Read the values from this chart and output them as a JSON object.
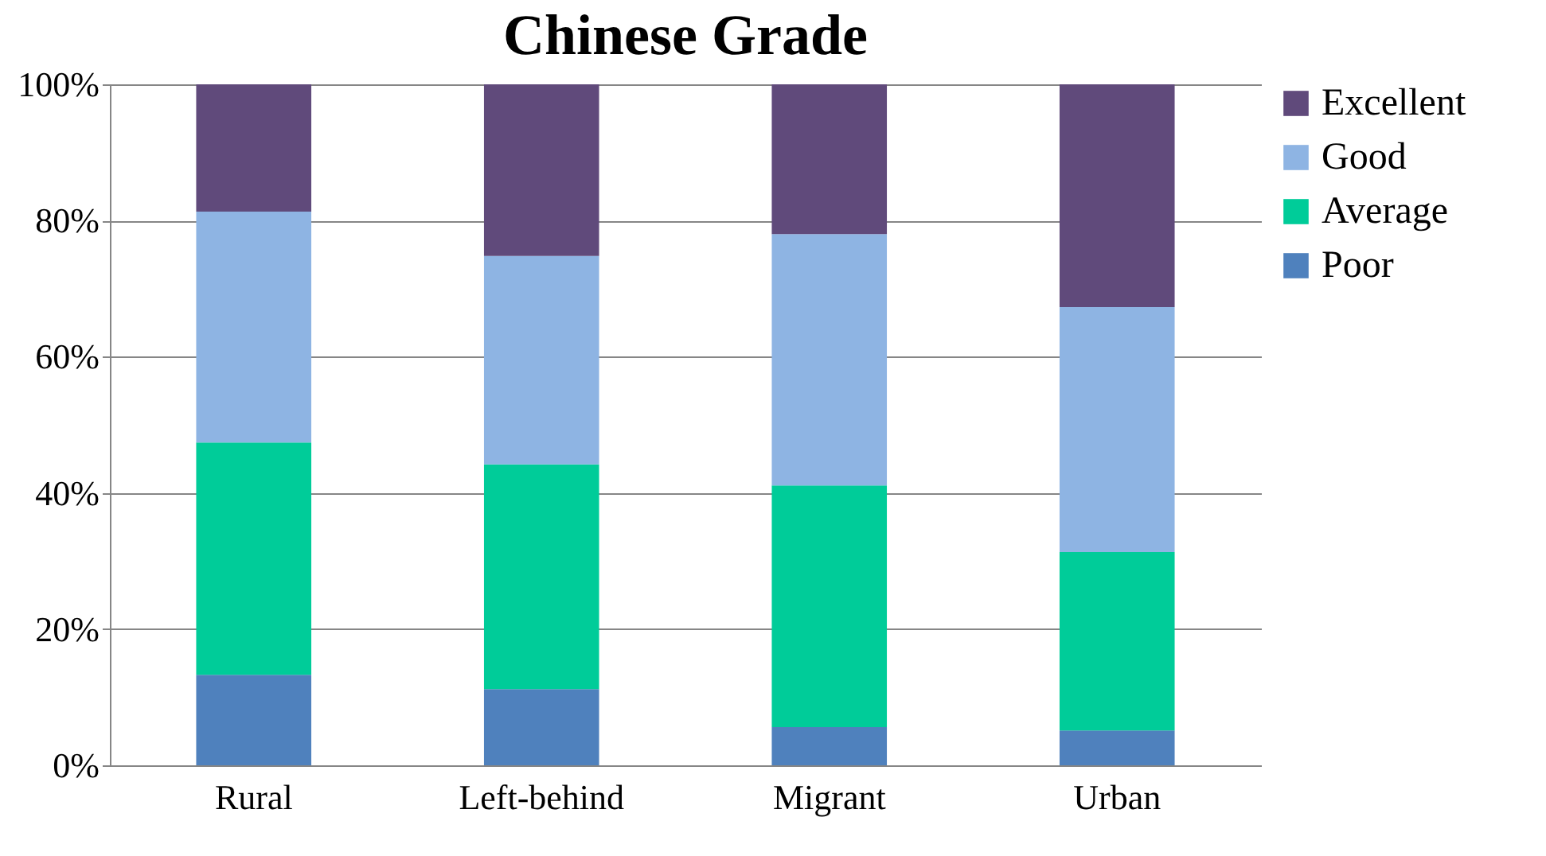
{
  "chart_data": {
    "type": "bar",
    "title": "Chinese Grade",
    "stacked": true,
    "categories": [
      "Rural",
      "Left-behind",
      "Migrant",
      "Urban"
    ],
    "series": [
      {
        "name": "Poor",
        "color": "#4f81bd",
        "values": [
          13.3,
          11.2,
          5.6,
          5.1
        ]
      },
      {
        "name": "Average",
        "color": "#00cc99",
        "values": [
          34.1,
          33.0,
          35.5,
          26.2
        ]
      },
      {
        "name": "Good",
        "color": "#8eb4e3",
        "values": [
          33.9,
          30.6,
          36.9,
          36.0
        ]
      },
      {
        "name": "Excellent",
        "color": "#604a7b",
        "values": [
          18.7,
          25.2,
          22.0,
          32.7
        ]
      }
    ],
    "ylim": [
      0,
      100
    ],
    "yticks": [
      {
        "value": 0,
        "label": "0%"
      },
      {
        "value": 20,
        "label": "20%"
      },
      {
        "value": 40,
        "label": "40%"
      },
      {
        "value": 60,
        "label": "60%"
      },
      {
        "value": 80,
        "label": "80%"
      },
      {
        "value": 100,
        "label": "100%"
      }
    ],
    "grid": "y",
    "legend": "right"
  }
}
